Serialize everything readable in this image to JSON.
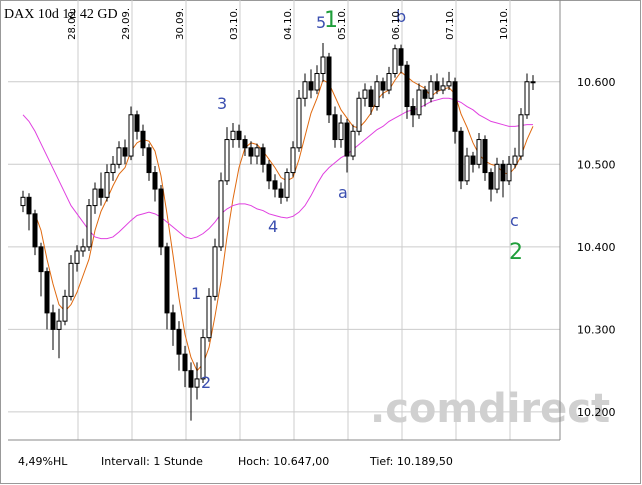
{
  "chart_data": {
    "type": "candlestick",
    "title": "DAX 10d 12 42 GD",
    "categories": [
      null,
      null,
      null,
      null,
      null,
      null,
      null,
      null,
      null,
      "28.09.",
      null,
      null,
      null,
      null,
      null,
      null,
      null,
      null,
      "29.09.",
      null,
      null,
      null,
      null,
      null,
      null,
      null,
      null,
      "30.09.",
      null,
      null,
      null,
      null,
      null,
      null,
      null,
      null,
      "03.10.",
      null,
      null,
      null,
      null,
      null,
      null,
      null,
      null,
      "04.10.",
      null,
      null,
      null,
      null,
      null,
      null,
      null,
      null,
      "05.10.",
      null,
      null,
      null,
      null,
      null,
      null,
      null,
      null,
      "06.10.",
      null,
      null,
      null,
      null,
      null,
      null,
      null,
      null,
      "07.10.",
      null,
      null,
      null,
      null,
      null,
      null,
      null,
      null,
      "10.10.",
      null,
      null,
      null,
      null
    ],
    "ohlc": [
      [
        10450,
        10468,
        10442,
        10460
      ],
      [
        10460,
        10465,
        10420,
        10440
      ],
      [
        10440,
        10445,
        10390,
        10400
      ],
      [
        10400,
        10405,
        10340,
        10370
      ],
      [
        10370,
        10375,
        10300,
        10320
      ],
      [
        10320,
        10330,
        10275,
        10300
      ],
      [
        10300,
        10325,
        10265,
        10310
      ],
      [
        10310,
        10348,
        10305,
        10340
      ],
      [
        10340,
        10390,
        10335,
        10380
      ],
      [
        10380,
        10402,
        10370,
        10395
      ],
      [
        10395,
        10410,
        10388,
        10400
      ],
      [
        10400,
        10458,
        10395,
        10450
      ],
      [
        10450,
        10478,
        10440,
        10470
      ],
      [
        10470,
        10490,
        10450,
        10460
      ],
      [
        10460,
        10500,
        10455,
        10490
      ],
      [
        10490,
        10510,
        10480,
        10500
      ],
      [
        10500,
        10528,
        10495,
        10520
      ],
      [
        10520,
        10530,
        10500,
        10510
      ],
      [
        10510,
        10570,
        10505,
        10560
      ],
      [
        10560,
        10565,
        10530,
        10540
      ],
      [
        10540,
        10548,
        10510,
        10520
      ],
      [
        10520,
        10525,
        10480,
        10490
      ],
      [
        10490,
        10498,
        10455,
        10470
      ],
      [
        10470,
        10475,
        10390,
        10400
      ],
      [
        10400,
        10405,
        10300,
        10320
      ],
      [
        10320,
        10330,
        10280,
        10300
      ],
      [
        10300,
        10310,
        10250,
        10270
      ],
      [
        10270,
        10280,
        10230,
        10250
      ],
      [
        10250,
        10260,
        10189.5,
        10230
      ],
      [
        10230,
        10260,
        10215,
        10240
      ],
      [
        10240,
        10300,
        10235,
        10290
      ],
      [
        10290,
        10350,
        10285,
        10340
      ],
      [
        10340,
        10410,
        10335,
        10400
      ],
      [
        10400,
        10490,
        10395,
        10480
      ],
      [
        10480,
        10545,
        10475,
        10530
      ],
      [
        10530,
        10550,
        10520,
        10540
      ],
      [
        10540,
        10548,
        10520,
        10530
      ],
      [
        10530,
        10535,
        10510,
        10520
      ],
      [
        10520,
        10528,
        10500,
        10510
      ],
      [
        10510,
        10525,
        10500,
        10520
      ],
      [
        10520,
        10525,
        10490,
        10500
      ],
      [
        10500,
        10505,
        10470,
        10480
      ],
      [
        10480,
        10488,
        10460,
        10470
      ],
      [
        10470,
        10478,
        10452,
        10460
      ],
      [
        10460,
        10495,
        10455,
        10490
      ],
      [
        10490,
        10528,
        10485,
        10520
      ],
      [
        10520,
        10590,
        10515,
        10580
      ],
      [
        10580,
        10610,
        10570,
        10600
      ],
      [
        10600,
        10615,
        10580,
        10590
      ],
      [
        10590,
        10620,
        10585,
        10610
      ],
      [
        10610,
        10647,
        10600,
        10630
      ],
      [
        10630,
        10635,
        10550,
        10560
      ],
      [
        10560,
        10570,
        10520,
        10530
      ],
      [
        10530,
        10560,
        10520,
        10550
      ],
      [
        10550,
        10555,
        10490,
        10510
      ],
      [
        10510,
        10548,
        10505,
        10540
      ],
      [
        10540,
        10588,
        10535,
        10580
      ],
      [
        10580,
        10598,
        10570,
        10590
      ],
      [
        10590,
        10595,
        10560,
        10570
      ],
      [
        10570,
        10608,
        10565,
        10600
      ],
      [
        10600,
        10605,
        10580,
        10590
      ],
      [
        10590,
        10618,
        10585,
        10610
      ],
      [
        10610,
        10645,
        10605,
        10640
      ],
      [
        10640,
        10645,
        10610,
        10620
      ],
      [
        10620,
        10625,
        10555,
        10570
      ],
      [
        10570,
        10580,
        10545,
        10560
      ],
      [
        10560,
        10598,
        10555,
        10590
      ],
      [
        10590,
        10595,
        10570,
        10580
      ],
      [
        10580,
        10608,
        10575,
        10600
      ],
      [
        10600,
        10610,
        10585,
        10590
      ],
      [
        10590,
        10605,
        10585,
        10595
      ],
      [
        10595,
        10612,
        10590,
        10600
      ],
      [
        10600,
        10605,
        10525,
        10540
      ],
      [
        10540,
        10545,
        10470,
        10480
      ],
      [
        10480,
        10520,
        10475,
        10510
      ],
      [
        10510,
        10515,
        10490,
        10500
      ],
      [
        10500,
        10538,
        10495,
        10530
      ],
      [
        10530,
        10535,
        10480,
        10490
      ],
      [
        10490,
        10495,
        10455,
        10470
      ],
      [
        10470,
        10508,
        10465,
        10500
      ],
      [
        10500,
        10505,
        10460,
        10480
      ],
      [
        10480,
        10510,
        10475,
        10500
      ],
      [
        10500,
        10520,
        10495,
        10510
      ],
      [
        10510,
        10568,
        10505,
        10560
      ],
      [
        10560,
        10610,
        10555,
        10600
      ],
      [
        10600,
        10608,
        10590,
        10600
      ]
    ],
    "series": [
      {
        "color": "#e06a10",
        "values": [
          null,
          null,
          10440,
          10420,
          10385,
          10355,
          10330,
          10322,
          10330,
          10345,
          10365,
          10385,
          10420,
          10443,
          10458,
          10474,
          10488,
          10496,
          10516,
          10526,
          10530,
          10528,
          10516,
          10486,
          10440,
          10390,
          10338,
          10294,
          10266,
          10250,
          10258,
          10278,
          10316,
          10358,
          10412,
          10458,
          10496,
          10520,
          10526,
          10524,
          10516,
          10506,
          10496,
          10484,
          10480,
          10484,
          10506,
          10534,
          10562,
          10580,
          10602,
          10598,
          10582,
          10566,
          10556,
          10546,
          10544,
          10552,
          10562,
          10578,
          10586,
          10590,
          10602,
          10612,
          10606,
          10600,
          10596,
          10592,
          10582,
          10588,
          10591,
          10593,
          10585,
          10561,
          10545,
          10526,
          10512,
          10504,
          10500,
          10498,
          10490,
          10488,
          10496,
          10510,
          10530,
          10546
        ]
      },
      {
        "color": "#e040e0",
        "values": [
          10560,
          10552,
          10540,
          10525,
          10510,
          10495,
          10480,
          10465,
          10450,
          10440,
          10430,
          10420,
          10412,
          10410,
          10410,
          10412,
          10418,
          10425,
          10432,
          10438,
          10440,
          10442,
          10440,
          10436,
          10430,
          10424,
          10418,
          10412,
          10410,
          10412,
          10416,
          10422,
          10430,
          10440,
          10446,
          10450,
          10452,
          10452,
          10450,
          10446,
          10444,
          10440,
          10438,
          10436,
          10435,
          10437,
          10442,
          10450,
          10462,
          10476,
          10488,
          10496,
          10502,
          10508,
          10512,
          10518,
          10524,
          10530,
          10536,
          10542,
          10546,
          10552,
          10556,
          10560,
          10564,
          10566,
          10568,
          10572,
          10576,
          10578,
          10580,
          10580,
          10578,
          10575,
          10570,
          10566,
          10560,
          10556,
          10552,
          10550,
          10548,
          10546,
          10546,
          10547,
          10548,
          10548
        ]
      }
    ],
    "ylim": [
      10166,
      10693
    ],
    "yticks": [
      {
        "value": 10200,
        "label": "10.200"
      },
      {
        "value": 10300,
        "label": "10.300"
      },
      {
        "value": 10400,
        "label": "10.400"
      },
      {
        "value": 10500,
        "label": "10.500"
      },
      {
        "value": 10600,
        "label": "10.600"
      }
    ],
    "grid": true,
    "annotations": [
      "5",
      "1",
      "b",
      "3",
      "a",
      "4",
      "c",
      "2",
      "1",
      "2"
    ],
    "watermark": ".comdirect",
    "footer": [
      "4,49%HL",
      "Intervall: 1 Stunde",
      "Hoch: 10.647,00",
      "Tief: 10.189,50"
    ]
  }
}
